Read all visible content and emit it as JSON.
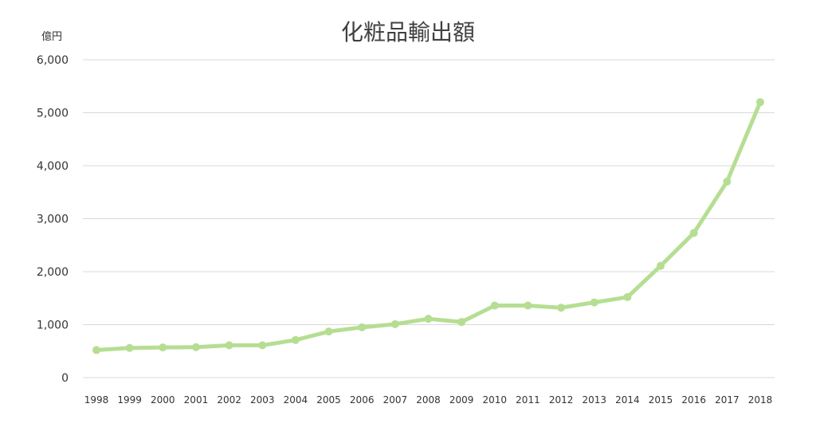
{
  "chart_data": {
    "type": "line",
    "title": "化粧品輸出額",
    "unit_label": "億円",
    "xlabel": "",
    "ylabel": "",
    "ylim": [
      0,
      6000
    ],
    "yticks": [
      "0",
      "1,000",
      "2,000",
      "3,000",
      "4,000",
      "5,000",
      "6,000"
    ],
    "ytick_values": [
      0,
      1000,
      2000,
      3000,
      4000,
      5000,
      6000
    ],
    "categories": [
      "1998",
      "1999",
      "2000",
      "2001",
      "2002",
      "2003",
      "2004",
      "2005",
      "2006",
      "2007",
      "2008",
      "2009",
      "2010",
      "2011",
      "2012",
      "2013",
      "2014",
      "2015",
      "2016",
      "2017",
      "2018"
    ],
    "series": [
      {
        "values": [
          520,
          560,
          570,
          575,
          610,
          610,
          710,
          870,
          950,
          1010,
          1110,
          1050,
          1360,
          1360,
          1320,
          1420,
          1520,
          2110,
          2730,
          3700,
          5200
        ]
      }
    ],
    "grid": true,
    "legend": "none",
    "colors": {
      "line": "#b5de93",
      "grid": "#d9d9d9",
      "text": "#333333",
      "title": "#404040"
    }
  }
}
